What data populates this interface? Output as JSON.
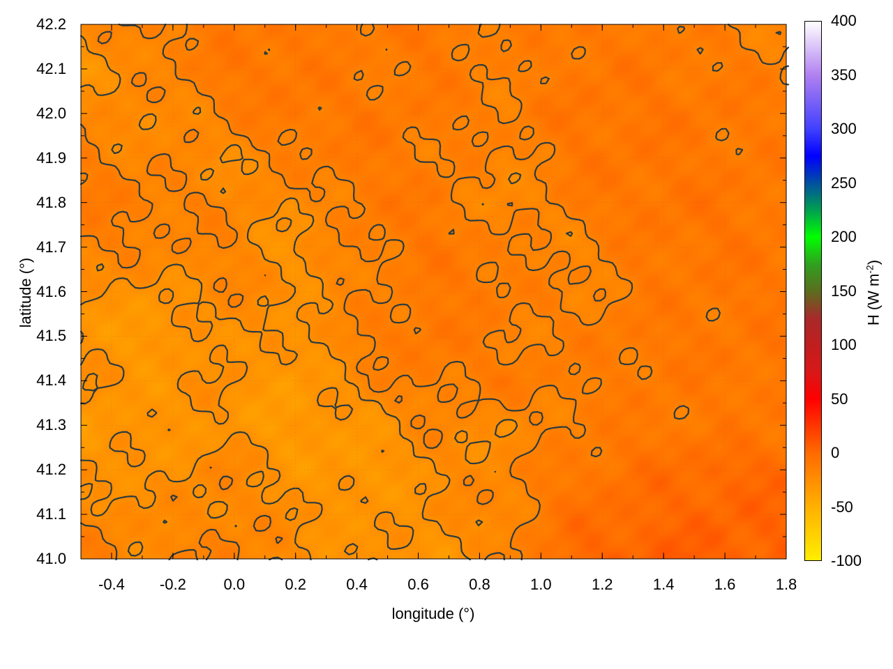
{
  "chart_data": {
    "type": "heatmap",
    "xlabel": "longitude (°)",
    "ylabel": "latitude (°)",
    "xlim": [
      -0.5,
      1.8
    ],
    "ylim": [
      41.0,
      42.2
    ],
    "xticks": [
      "-0.4",
      "-0.2",
      "0.0",
      "0.2",
      "0.4",
      "0.6",
      "0.8",
      "1.0",
      "1.2",
      "1.4",
      "1.6",
      "1.8"
    ],
    "yticks": [
      "41.0",
      "41.1",
      "41.2",
      "41.3",
      "41.4",
      "41.5",
      "41.6",
      "41.7",
      "41.8",
      "41.9",
      "42.0",
      "42.1",
      "42.2"
    ],
    "grid": true,
    "colorbar": {
      "label": "H (W m",
      "label_sup": "-2",
      "label_end": ")",
      "range": [
        -100,
        400
      ],
      "ticks": [
        "-100",
        "-50",
        "0",
        "50",
        "100",
        "150",
        "200",
        "250",
        "300",
        "350",
        "400"
      ],
      "stops": [
        [
          -100,
          "#ffee00"
        ],
        [
          -50,
          "#ffb000"
        ],
        [
          0,
          "#ff6a00"
        ],
        [
          50,
          "#ff0000"
        ],
        [
          75,
          "#d81818"
        ],
        [
          100,
          "#c01e1e"
        ],
        [
          125,
          "#a82a2a"
        ],
        [
          150,
          "#5a6e1e"
        ],
        [
          175,
          "#30a020"
        ],
        [
          200,
          "#00ff00"
        ],
        [
          225,
          "#00a050"
        ],
        [
          250,
          "#0050a0"
        ],
        [
          275,
          "#0000ff"
        ],
        [
          300,
          "#4040ff"
        ],
        [
          350,
          "#b080f0"
        ],
        [
          400,
          "#ffffff"
        ]
      ]
    },
    "grid_lon": [
      -0.5,
      -0.27,
      -0.04,
      0.19,
      0.42,
      0.65,
      0.88,
      1.11,
      1.34,
      1.57,
      1.8
    ],
    "grid_lat": [
      42.2,
      42.1,
      42.0,
      41.9,
      41.8,
      41.7,
      41.6,
      41.5,
      41.4,
      41.3,
      41.2,
      41.1,
      41.0
    ],
    "values": [
      [
        -25,
        -15,
        -12,
        -10,
        -12,
        -10,
        -15,
        -10,
        -12,
        -15,
        -20
      ],
      [
        -30,
        -20,
        -10,
        -8,
        -15,
        -10,
        -18,
        -10,
        -10,
        -12,
        -15
      ],
      [
        -20,
        -25,
        -15,
        -10,
        -10,
        -12,
        -15,
        -8,
        -8,
        -10,
        -12
      ],
      [
        -15,
        -20,
        -25,
        -15,
        -10,
        -15,
        -20,
        -10,
        -8,
        -10,
        -12
      ],
      [
        -12,
        -15,
        -20,
        -25,
        -12,
        -10,
        -25,
        -12,
        -8,
        -8,
        -10
      ],
      [
        -15,
        -20,
        -18,
        -30,
        -15,
        -10,
        -15,
        -20,
        -10,
        -8,
        -10
      ],
      [
        -25,
        -30,
        -20,
        -25,
        -20,
        -10,
        -12,
        -20,
        -12,
        -10,
        -8
      ],
      [
        -30,
        -35,
        -25,
        -30,
        -15,
        -8,
        -18,
        -15,
        -10,
        -10,
        -10
      ],
      [
        -25,
        -30,
        -25,
        -35,
        -20,
        -15,
        -12,
        -15,
        -12,
        -10,
        -8
      ],
      [
        -35,
        -30,
        -30,
        -35,
        -30,
        -20,
        -25,
        -15,
        -10,
        -12,
        -10
      ],
      [
        -25,
        -30,
        -20,
        -30,
        -35,
        -25,
        -20,
        -10,
        -5,
        0,
        0
      ],
      [
        -20,
        -25,
        -20,
        -25,
        -30,
        -25,
        -20,
        -5,
        0,
        2,
        2
      ],
      [
        -15,
        -20,
        -15,
        -25,
        -30,
        -30,
        -20,
        0,
        5,
        5,
        3
      ]
    ],
    "contour_color": "#2a3a40"
  }
}
